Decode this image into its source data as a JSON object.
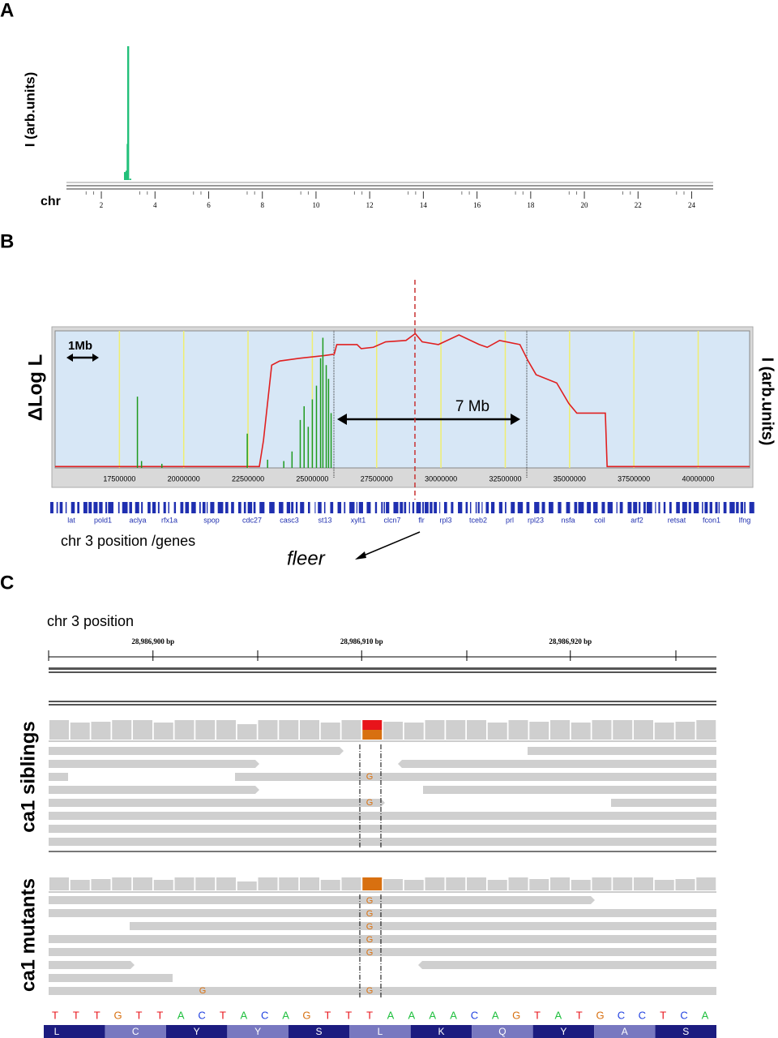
{
  "panels": {
    "a": "A",
    "b": "B",
    "c": "C"
  },
  "chart_data": [
    {
      "type": "bar",
      "y_label": "I (arb.units)",
      "x_label": "chr",
      "x": [
        2.88,
        2.94,
        2.98,
        3.0,
        3.08
      ],
      "values": [
        0.06,
        0.07,
        0.27,
        1.0,
        0.01
      ],
      "color": "#22c07a",
      "xlim": [
        0.7,
        24.8
      ],
      "xticks": [
        2,
        4,
        6,
        8,
        10,
        12,
        14,
        16,
        18,
        20,
        22,
        24
      ],
      "ylim": [
        0,
        1
      ]
    },
    {
      "type": "line",
      "y_label": "ΔLog L",
      "y2_label": "I (arb.units)",
      "x_label": "chr 3 position /genes",
      "xlim": [
        15000000,
        42000000
      ],
      "xticks": [
        17500000,
        20000000,
        22500000,
        25000000,
        27500000,
        30000000,
        32500000,
        35000000,
        37500000,
        40000000
      ],
      "ylim": [
        0,
        1
      ],
      "y2lim": [
        0,
        1
      ],
      "grid": true,
      "series": [
        {
          "color": "#e02020",
          "x": [
            15000000,
            22940000,
            23100000,
            23420000,
            23730000,
            24500000,
            25470000,
            25850000,
            25950000,
            26740000,
            26900000,
            27370000,
            27850000,
            28640000,
            29000000,
            29270000,
            29900000,
            30700000,
            31490000,
            31800000,
            32280000,
            33070000,
            33390000,
            33700000,
            34500000,
            34970000,
            35280000,
            36390000,
            36460000,
            42000000
          ],
          "values": [
            0.01,
            0.01,
            0.2,
            0.75,
            0.78,
            0.8,
            0.82,
            0.83,
            0.9,
            0.9,
            0.87,
            0.88,
            0.92,
            0.93,
            0.98,
            0.92,
            0.9,
            0.97,
            0.9,
            0.88,
            0.93,
            0.9,
            0.78,
            0.68,
            0.62,
            0.47,
            0.4,
            0.4,
            0.01,
            0.01
          ]
        },
        {
          "color": "#1e9a1e",
          "axis": "y2",
          "type": "bar",
          "x": [
            18200000,
            18360000,
            19150000,
            22470000,
            23260000,
            23890000,
            24210000,
            24530000,
            24680000,
            24840000,
            25000000,
            25160000,
            25320000,
            25410000,
            25540000,
            25630000,
            25730000
          ],
          "values": [
            0.52,
            0.05,
            0.03,
            0.25,
            0.06,
            0.05,
            0.12,
            0.35,
            0.45,
            0.3,
            0.5,
            0.6,
            0.8,
            0.95,
            0.75,
            0.65,
            0.4
          ]
        }
      ],
      "scale_annotation": "1Mb",
      "span_annotation": "7 Mb",
      "gene_annotation": "fleer",
      "genes": [
        "lat",
        "pold1",
        "aclya",
        "rfx1a",
        "spop",
        "cdc27",
        "casc3",
        "st13",
        "xylt1",
        "clcn7",
        "flr",
        "rpl3",
        "tceb2",
        "prl",
        "rpl23",
        "nsfa",
        "coil",
        "arf2",
        "retsat",
        "fcon1",
        "lfng"
      ]
    }
  ],
  "igv": {
    "title": "chr 3 position",
    "xlim": [
      28986895,
      28986927
    ],
    "xticks": [
      {
        "value": 28986900,
        "label": "28,986,900 bp"
      },
      {
        "value": 28986910,
        "label": "28,986,910 bp"
      },
      {
        "value": 28986920,
        "label": "28,986,920 bp"
      }
    ],
    "siblings_label": "ca1 siblings",
    "mutants_label": "ca1 mutants",
    "siblings_mismatches": [
      "G",
      "G"
    ],
    "mutants_mismatches": [
      "G",
      "G",
      "G",
      "G",
      "G",
      "G",
      "G"
    ],
    "sequence": [
      "T",
      "T",
      "T",
      "G",
      "T",
      "T",
      "A",
      "C",
      "T",
      "A",
      "C",
      "A",
      "G",
      "T",
      "T",
      "T",
      "A",
      "A",
      "A",
      "A",
      "C",
      "A",
      "G",
      "T",
      "A",
      "T",
      "G",
      "C",
      "C",
      "T",
      "C",
      "A"
    ],
    "amino_acids": [
      "L",
      "C",
      "Y",
      "Y",
      "S",
      "L",
      "K",
      "Q",
      "Y",
      "A",
      "S"
    ]
  }
}
